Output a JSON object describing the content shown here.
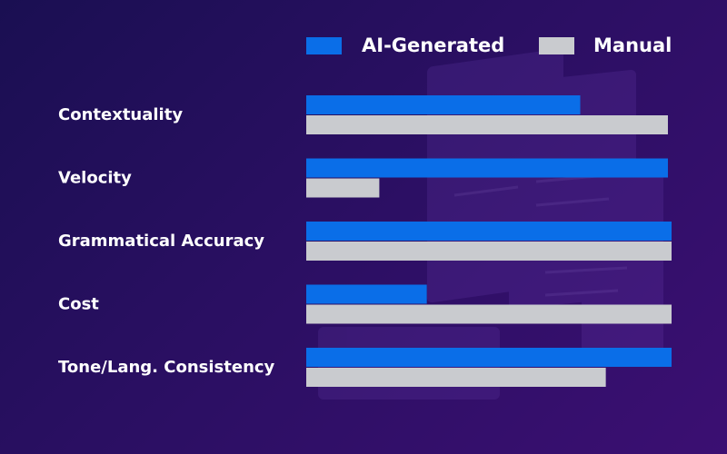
{
  "chart_data": {
    "type": "bar",
    "orientation": "horizontal",
    "title": "",
    "xlabel": "",
    "ylabel": "",
    "categories": [
      "Contextuality",
      "Velocity",
      "Grammatical Accuracy",
      "Cost",
      "Tone/Lang. Consistency"
    ],
    "series": [
      {
        "name": "AI-Generated",
        "color": "#0a6ee8",
        "values": [
          75,
          99,
          100,
          33,
          100
        ]
      },
      {
        "name": "Manual",
        "color": "#c9cbcf",
        "values": [
          99,
          20,
          100,
          100,
          82
        ]
      }
    ],
    "xlim": [
      0,
      100
    ],
    "grid": false,
    "legend_position": "top-right"
  }
}
